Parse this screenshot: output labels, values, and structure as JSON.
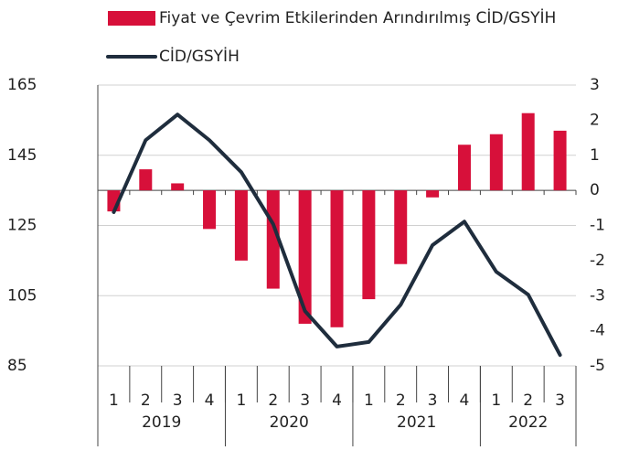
{
  "chart_data": {
    "type": "bar_line",
    "groups": [
      {
        "label": "2019",
        "categories": [
          "1",
          "2",
          "3",
          "4"
        ]
      },
      {
        "label": "2020",
        "categories": [
          "1",
          "2",
          "3",
          "4"
        ]
      },
      {
        "label": "2021",
        "categories": [
          "1",
          "2",
          "3",
          "4"
        ]
      },
      {
        "label": "2022",
        "categories": [
          "1",
          "2",
          "3"
        ]
      }
    ],
    "series": [
      {
        "name": "Fiyat ve Çevrim Etkilerinden Arındırılmış CİD/GSYİH",
        "type": "bar",
        "axis": "y2",
        "color": "#d7103a",
        "values": [
          -0.6,
          0.6,
          0.2,
          -1.1,
          -2.0,
          -2.8,
          -3.8,
          -3.9,
          -3.1,
          -2.1,
          -0.2,
          1.3,
          1.6,
          2.2,
          1.7
        ]
      },
      {
        "name": "CİD/GSYİH",
        "type": "line",
        "axis": "y",
        "color": "#1f2d3d",
        "values": [
          128.8,
          149.3,
          156.6,
          149.3,
          140.2,
          125.4,
          100.6,
          90.5,
          91.8,
          102.4,
          119.4,
          126.1,
          111.8,
          105.3,
          88.1
        ]
      }
    ],
    "ylim": [
      85,
      165
    ],
    "yticks": [
      85,
      105,
      125,
      145,
      165
    ],
    "y2lim": [
      -5,
      3
    ],
    "y2ticks": [
      -5,
      -4,
      -3,
      -2,
      -1,
      0,
      1,
      2,
      3
    ],
    "grid": true
  }
}
